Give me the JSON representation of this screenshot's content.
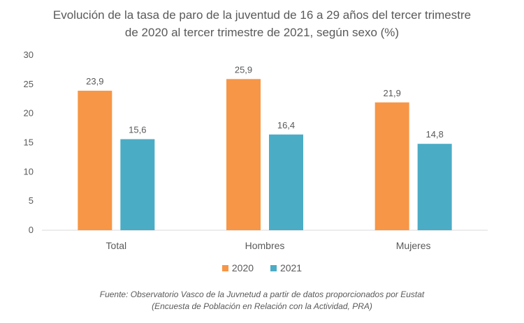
{
  "chart_data": {
    "type": "bar",
    "title": "Evolución de la tasa de paro de la juventud de 16 a 29 años del tercer trimestre de 2020 al tercer trimestre de 2021, según sexo (%)",
    "title_lines": [
      "Evolución de la tasa de paro de la juventud de 16 a 29 años del tercer trimestre",
      "de 2020 al tercer trimestre de 2021, según sexo (%)"
    ],
    "categories": [
      "Total",
      "Hombres",
      "Mujeres"
    ],
    "series": [
      {
        "name": "2020",
        "values": [
          23.9,
          25.9,
          21.9
        ],
        "labels": [
          "23,9",
          "25,9",
          "21,9"
        ],
        "color": "#F79646"
      },
      {
        "name": "2021",
        "values": [
          15.6,
          16.4,
          14.8
        ],
        "labels": [
          "15,6",
          "16,4",
          "14,8"
        ],
        "color": "#4BACC6"
      }
    ],
    "ylim": [
      0,
      30
    ],
    "yticks": [
      "0",
      "5",
      "10",
      "15",
      "20",
      "25",
      "30"
    ],
    "grid": false,
    "legend": "bottom",
    "xlabel": "",
    "ylabel": ""
  },
  "source_lines": [
    "Fuente: Observatorio Vasco de la Juvnetud a partir de datos proporcionados por Eustat",
    "(Encuesta de Población en Relación con la Actividad, PRA)"
  ]
}
